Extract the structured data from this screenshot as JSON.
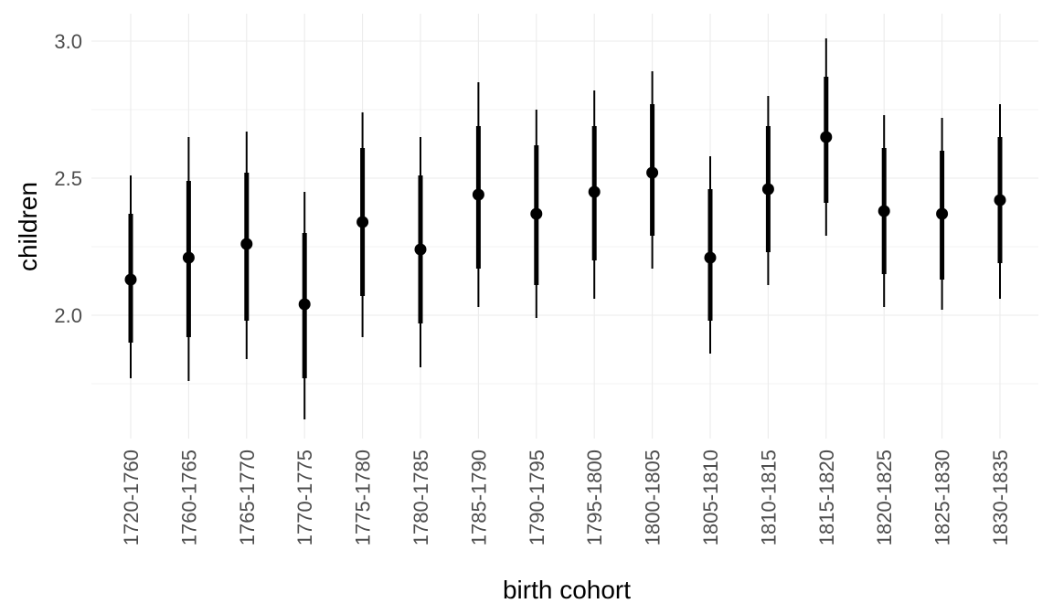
{
  "chart_data": {
    "type": "scatter",
    "subtype": "point-interval",
    "title": "",
    "xlabel": "birth cohort",
    "ylabel": "children",
    "ylim": [
      1.55,
      3.1
    ],
    "yticks": [
      2.0,
      2.5,
      3.0
    ],
    "ytick_labels": [
      "2.0",
      "2.5",
      "3.0"
    ],
    "grid": true,
    "legend": "none",
    "color": "#000000",
    "categories": [
      "1720-1760",
      "1760-1765",
      "1765-1770",
      "1770-1775",
      "1775-1780",
      "1780-1785",
      "1785-1790",
      "1790-1795",
      "1795-1800",
      "1800-1805",
      "1805-1810",
      "1810-1815",
      "1815-1820",
      "1820-1825",
      "1825-1830",
      "1830-1835"
    ],
    "estimate": [
      2.13,
      2.21,
      2.26,
      2.04,
      2.34,
      2.24,
      2.44,
      2.37,
      2.45,
      2.52,
      2.21,
      2.46,
      2.65,
      2.38,
      2.37,
      2.42
    ],
    "inner_low": [
      1.9,
      1.92,
      1.98,
      1.77,
      2.07,
      1.97,
      2.17,
      2.11,
      2.2,
      2.29,
      1.98,
      2.23,
      2.41,
      2.15,
      2.13,
      2.19
    ],
    "inner_high": [
      2.37,
      2.49,
      2.52,
      2.3,
      2.61,
      2.51,
      2.69,
      2.62,
      2.69,
      2.77,
      2.46,
      2.69,
      2.87,
      2.61,
      2.6,
      2.65
    ],
    "outer_low": [
      1.77,
      1.76,
      1.84,
      1.62,
      1.92,
      1.81,
      2.03,
      1.99,
      2.06,
      2.17,
      1.86,
      2.11,
      2.29,
      2.03,
      2.02,
      2.06
    ],
    "outer_high": [
      2.51,
      2.65,
      2.67,
      2.45,
      2.74,
      2.65,
      2.85,
      2.75,
      2.82,
      2.89,
      2.58,
      2.8,
      3.01,
      2.73,
      2.72,
      2.77
    ]
  }
}
